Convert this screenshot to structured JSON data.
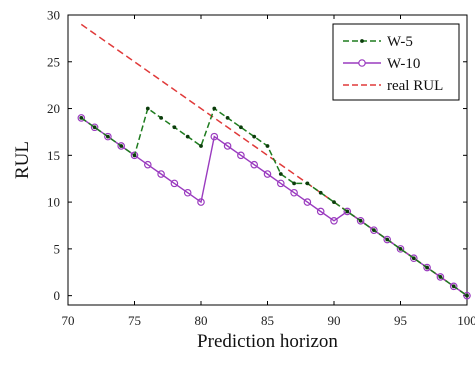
{
  "chart_data": {
    "type": "line",
    "title": "",
    "xlabel": "Prediction horizon",
    "ylabel": "RUL",
    "xlim": [
      70,
      100
    ],
    "ylim": [
      -1,
      30
    ],
    "xticks": [
      70,
      75,
      80,
      85,
      90,
      95,
      100
    ],
    "yticks": [
      0,
      5,
      10,
      15,
      20,
      25,
      30
    ],
    "grid": false,
    "legend_position": "top-right",
    "series": [
      {
        "name": "W-5",
        "color": "#1e7b1e",
        "dash": "dashed",
        "marker": "dot",
        "x": [
          71,
          72,
          73,
          74,
          75,
          76,
          77,
          78,
          79,
          80,
          81,
          82,
          83,
          84,
          85,
          86,
          87,
          88,
          89,
          90,
          91,
          92,
          93,
          94,
          95,
          96,
          97,
          98,
          99,
          100
        ],
        "y": [
          19,
          18,
          17,
          16,
          15,
          20,
          19,
          18,
          17,
          16,
          20,
          19,
          18,
          17,
          16,
          13,
          12,
          12,
          11,
          10,
          9,
          8,
          7,
          6,
          5,
          4,
          3,
          2,
          1,
          0
        ]
      },
      {
        "name": "W-10",
        "color": "#9a3bbf",
        "dash": "solid",
        "marker": "circle",
        "x": [
          71,
          72,
          73,
          74,
          75,
          76,
          77,
          78,
          79,
          80,
          81,
          82,
          83,
          84,
          85,
          86,
          87,
          88,
          89,
          90,
          91,
          92,
          93,
          94,
          95,
          96,
          97,
          98,
          99,
          100
        ],
        "y": [
          19,
          18,
          17,
          16,
          15,
          14,
          13,
          12,
          11,
          10,
          17,
          16,
          15,
          14,
          13,
          12,
          11,
          10,
          9,
          8,
          9,
          8,
          7,
          6,
          5,
          4,
          3,
          2,
          1,
          0
        ]
      },
      {
        "name": "real RUL",
        "color": "#e03a3a",
        "dash": "dashed",
        "marker": "none",
        "x": [
          71,
          100
        ],
        "y": [
          29,
          0
        ]
      }
    ]
  }
}
